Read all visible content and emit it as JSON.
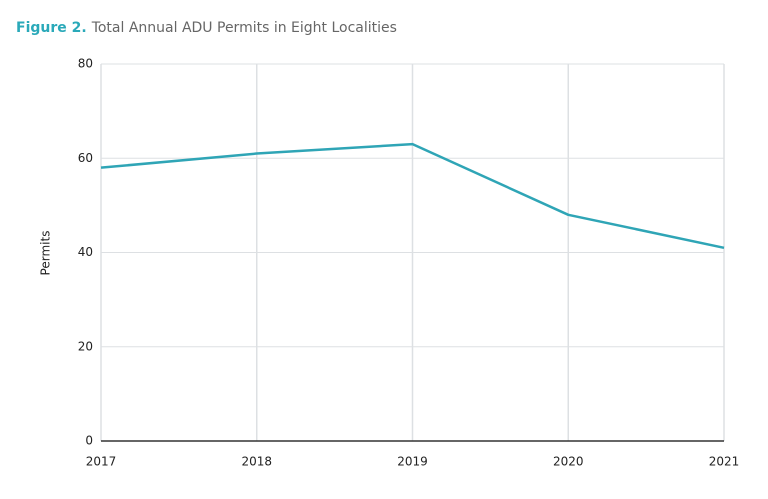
{
  "chart_data": {
    "type": "line",
    "title_label": "Figure 2.",
    "title": "Total Annual ADU Permits in Eight Localities",
    "y_label": "Permits",
    "x": [
      2017,
      2018,
      2019,
      2020,
      2021
    ],
    "series": [
      {
        "name": "ADU Permits",
        "color": "#2fa5b6",
        "values": [
          58,
          61,
          63,
          48,
          41
        ]
      }
    ],
    "xlim": [
      2017,
      2021
    ],
    "xticks": [
      2017,
      2018,
      2019,
      2020,
      2021
    ],
    "ylim": [
      0,
      80
    ],
    "yticks": [
      0,
      20,
      40,
      60,
      80
    ],
    "grid": true
  }
}
